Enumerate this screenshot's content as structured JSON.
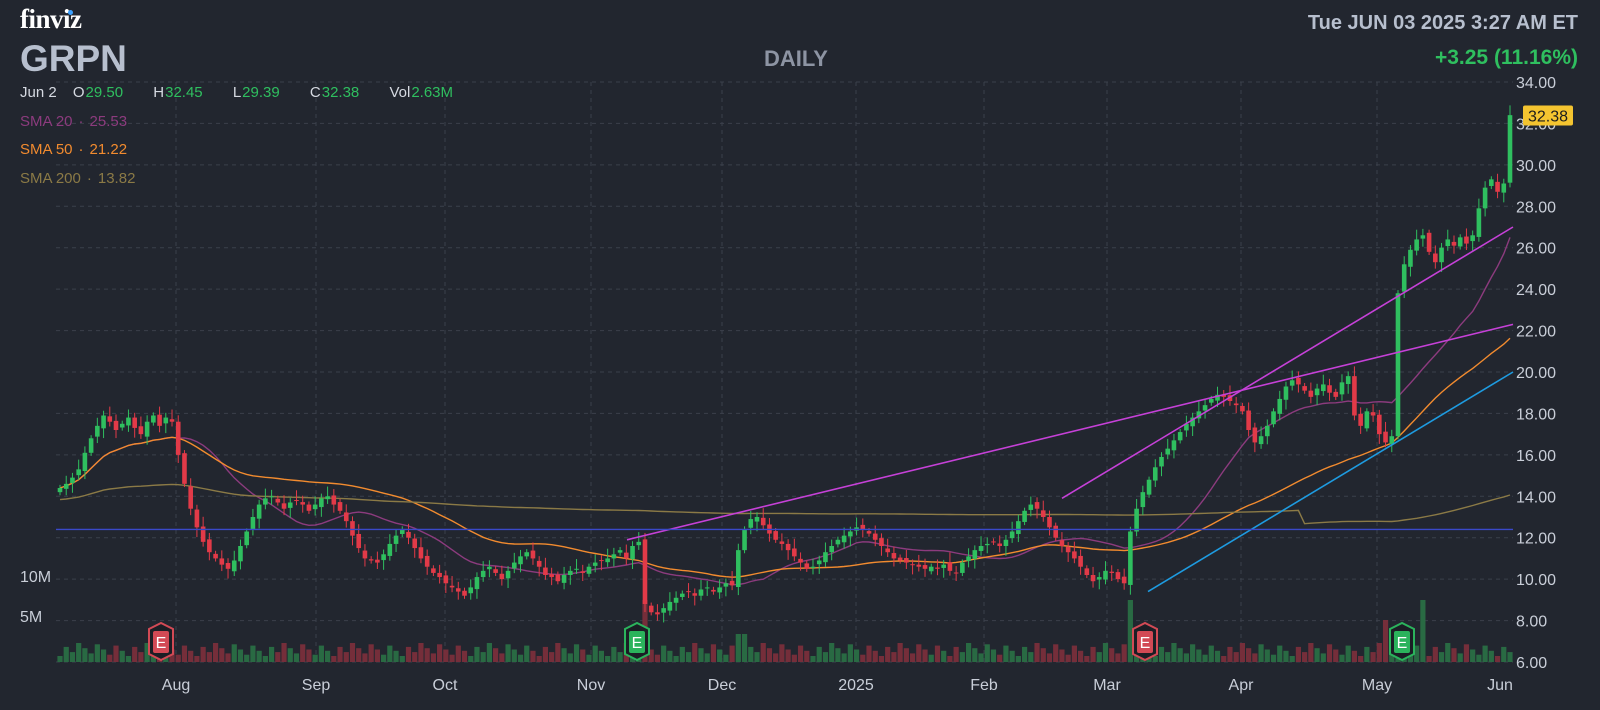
{
  "header": {
    "logo": "finviz",
    "ticker": "GRPN",
    "timeframe": "DAILY",
    "datetime": "Tue JUN 03 2025 3:27 AM ET",
    "change": "+3.25 (11.16%)",
    "ohlc": {
      "date": "Jun 2",
      "o": "29.50",
      "h": "32.45",
      "l": "29.39",
      "c": "32.38",
      "vol": "2.63M"
    },
    "sma": [
      {
        "label": "SMA 20",
        "value": "25.53"
      },
      {
        "label": "SMA 50",
        "value": "21.22"
      },
      {
        "label": "SMA 200",
        "value": "13.82"
      }
    ]
  },
  "chart_data": {
    "type": "candlestick",
    "x_labels": [
      "Aug",
      "Sep",
      "Oct",
      "Nov",
      "Dec",
      "2025",
      "Feb",
      "Mar",
      "Apr",
      "May",
      "Jun"
    ],
    "y_ticks": [
      "34.00",
      "32.00",
      "30.00",
      "28.00",
      "26.00",
      "24.00",
      "22.00",
      "20.00",
      "18.00",
      "16.00",
      "14.00",
      "12.00",
      "10.00",
      "8.00",
      "6.00"
    ],
    "ylim": [
      6,
      34
    ],
    "volume_ticks": [
      "10M",
      "5M"
    ],
    "last_price_label": "32.38",
    "price_closes": [
      14.4,
      14.6,
      14.9,
      15.3,
      16.1,
      16.8,
      17.4,
      17.9,
      17.6,
      17.2,
      17.5,
      17.8,
      17.3,
      17.0,
      17.6,
      17.9,
      17.4,
      17.8,
      17.6,
      16.0,
      14.6,
      13.4,
      12.5,
      11.8,
      11.3,
      11.0,
      10.7,
      10.5,
      10.9,
      11.6,
      12.3,
      13.0,
      13.6,
      13.9,
      14.0,
      13.7,
      13.4,
      13.7,
      13.8,
      13.6,
      13.3,
      13.6,
      13.9,
      14.0,
      13.6,
      13.3,
      12.8,
      12.1,
      11.5,
      11.0,
      10.9,
      10.8,
      11.2,
      11.7,
      12.1,
      12.4,
      12.0,
      11.5,
      11.0,
      10.6,
      10.3,
      10.1,
      9.8,
      9.6,
      9.4,
      9.2,
      9.6,
      10.1,
      10.4,
      10.6,
      10.3,
      10.0,
      10.4,
      10.8,
      11.1,
      11.3,
      11.0,
      10.6,
      10.2,
      10.1,
      9.9,
      10.2,
      10.4,
      10.5,
      10.3,
      10.6,
      10.8,
      10.9,
      11.0,
      11.2,
      11.4,
      11.0,
      11.6,
      11.8,
      8.8,
      8.4,
      8.3,
      8.6,
      8.9,
      9.1,
      9.3,
      9.4,
      9.2,
      9.5,
      9.6,
      9.4,
      9.6,
      9.8,
      9.7,
      11.4,
      12.4,
      12.9,
      13.0,
      12.6,
      12.2,
      11.9,
      11.7,
      11.4,
      11.1,
      10.8,
      10.5,
      10.6,
      10.9,
      11.3,
      11.6,
      11.9,
      12.1,
      12.3,
      12.5,
      12.4,
      12.2,
      11.9,
      11.6,
      11.3,
      11.0,
      10.9,
      10.8,
      10.7,
      10.6,
      10.5,
      10.6,
      10.5,
      10.7,
      10.4,
      10.3,
      10.8,
      11.1,
      11.4,
      11.6,
      11.7,
      11.8,
      11.6,
      11.9,
      12.3,
      12.8,
      13.3,
      13.6,
      13.4,
      13.0,
      12.5,
      12.0,
      11.6,
      11.3,
      11.0,
      10.6,
      10.2,
      9.9,
      10.1,
      10.4,
      10.3,
      10.0,
      9.8,
      12.3,
      13.4,
      14.2,
      14.8,
      15.4,
      15.9,
      16.3,
      16.7,
      17.1,
      17.5,
      17.8,
      18.1,
      18.4,
      18.7,
      18.9,
      18.8,
      18.6,
      18.4,
      18.1,
      17.2,
      16.6,
      16.9,
      17.4,
      18.1,
      18.7,
      19.3,
      19.6,
      19.4,
      19.1,
      18.8,
      19.2,
      19.4,
      19.0,
      18.8,
      19.5,
      19.8,
      17.9,
      17.4,
      18.1,
      17.9,
      17.0,
      16.6,
      16.9,
      23.8,
      25.2,
      25.9,
      26.4,
      26.6,
      25.8,
      25.3,
      26.0,
      26.4,
      26.1,
      26.5,
      26.2,
      26.6,
      27.9,
      28.9,
      29.3,
      28.7,
      29.1,
      32.4
    ],
    "trendlines": [
      {
        "color": "#c641d8",
        "from": [
          "Nov",
          11.9
        ],
        "to": [
          "Jun",
          22.3
        ]
      },
      {
        "color": "#c641d8",
        "from": [
          "Feb",
          13.9
        ],
        "to": [
          "Jun",
          27.0
        ]
      },
      {
        "color": "#1e9be0",
        "from": [
          "Mar",
          9.4
        ],
        "to": [
          "Jun",
          20.0
        ]
      },
      {
        "color": "#3a49c9",
        "horizontal": 12.4
      }
    ],
    "earnings_markers": [
      {
        "label": "E",
        "color": "#d24a55",
        "near": "Aug"
      },
      {
        "label": "E",
        "color": "#2bb35c",
        "near": "Nov"
      },
      {
        "label": "E",
        "color": "#d24a55",
        "near": "Mar"
      },
      {
        "label": "E",
        "color": "#2bb35c",
        "near": "May"
      }
    ],
    "colors": {
      "up": "#2fbf5f",
      "down": "#e23a48",
      "sma20": "#8c3b7e",
      "sma50": "#f28b2f",
      "sma200": "#8b7a46",
      "background": "#22262f"
    }
  }
}
